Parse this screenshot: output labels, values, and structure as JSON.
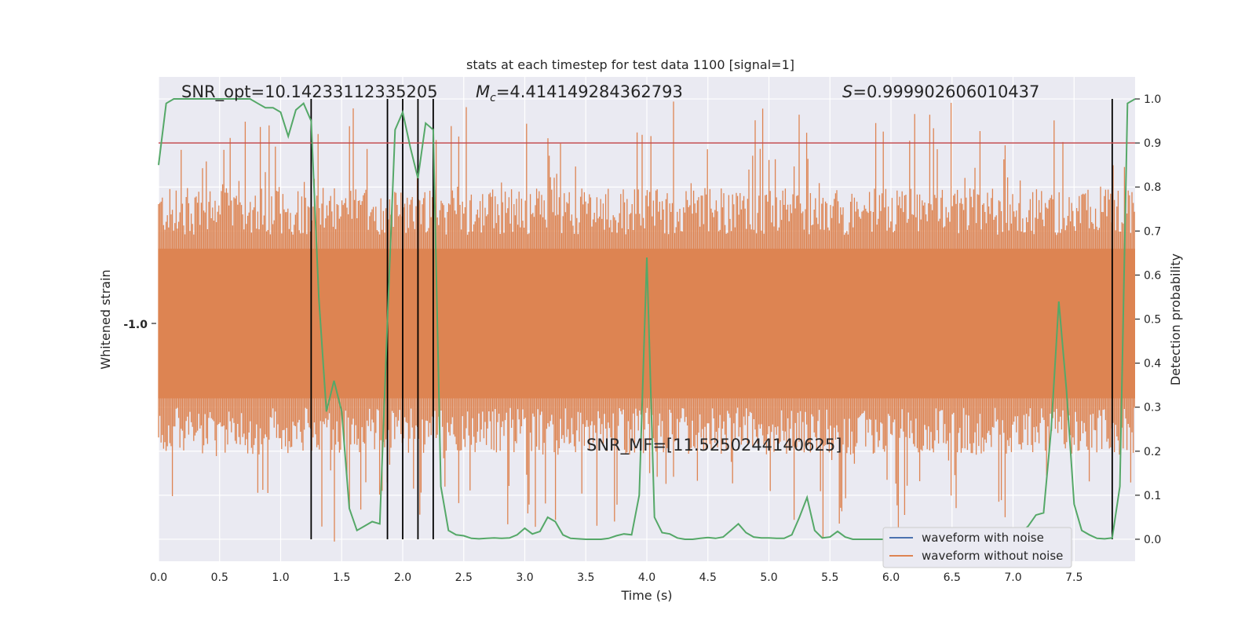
{
  "chart_data": {
    "type": "line",
    "title": "stats at each timestep for test data 1100 [signal=1]",
    "xlabel": "Time (s)",
    "ylabel_left": "Whitened strain",
    "ylabel_right": "Detection probability",
    "xlim": [
      0.0,
      8.0
    ],
    "ylim_right": [
      -0.05,
      1.05
    ],
    "x_ticks": [
      "0.0",
      "0.5",
      "1.0",
      "1.5",
      "2.0",
      "2.5",
      "3.0",
      "3.5",
      "4.0",
      "4.5",
      "5.0",
      "5.5",
      "6.0",
      "6.5",
      "7.0",
      "7.5"
    ],
    "y_ticks_right": [
      "0.0",
      "0.1",
      "0.2",
      "0.3",
      "0.4",
      "0.5",
      "0.6",
      "0.7",
      "0.8",
      "0.9",
      "1.0"
    ],
    "left_axis_tick_label": "-1.0",
    "annotations": {
      "snr_opt": "SNR_opt=10.14233112335205",
      "mc_symbol": "M",
      "mc_subscript": "c",
      "mc_value": "=4.414149284362793",
      "s_symbol": "S",
      "s_value": "=0.999902606010437",
      "snr_mf": "SNR_MF=[11.5250244140625]"
    },
    "threshold": 0.9,
    "vertical_lines": [
      1.25,
      1.875,
      2.0,
      2.125,
      2.25,
      7.8125
    ],
    "series": [
      {
        "name": "waveform with noise",
        "color": "#4c72b0"
      },
      {
        "name": "waveform without noise",
        "color": "#dd8452"
      },
      {
        "color": "#55a868",
        "x": [
          0.0,
          0.0625,
          0.125,
          0.1875,
          0.25,
          0.3125,
          0.375,
          0.4375,
          0.5,
          0.5625,
          0.625,
          0.6875,
          0.75,
          0.8125,
          0.875,
          0.9375,
          1.0,
          1.0625,
          1.125,
          1.1875,
          1.25,
          1.3125,
          1.375,
          1.4375,
          1.5,
          1.5625,
          1.625,
          1.6875,
          1.75,
          1.8125,
          1.875,
          1.9375,
          2.0,
          2.0625,
          2.125,
          2.1875,
          2.25,
          2.3125,
          2.375,
          2.4375,
          2.5,
          2.5625,
          2.625,
          2.6875,
          2.75,
          2.8125,
          2.875,
          2.9375,
          3.0,
          3.0625,
          3.125,
          3.1875,
          3.25,
          3.3125,
          3.375,
          3.4375,
          3.5,
          3.5625,
          3.625,
          3.6875,
          3.75,
          3.8125,
          3.875,
          3.9375,
          4.0,
          4.0625,
          4.125,
          4.1875,
          4.25,
          4.3125,
          4.375,
          4.4375,
          4.5,
          4.5625,
          4.625,
          4.6875,
          4.75,
          4.8125,
          4.875,
          4.9375,
          5.0,
          5.0625,
          5.125,
          5.1875,
          5.25,
          5.3125,
          5.375,
          5.4375,
          5.5,
          5.5625,
          5.625,
          5.6875,
          5.75,
          5.8125,
          5.875,
          5.9375,
          6.0,
          6.0625,
          6.125,
          6.1875,
          6.25,
          6.3125,
          6.375,
          6.4375,
          6.5,
          6.5625,
          6.625,
          6.6875,
          6.75,
          6.8125,
          6.875,
          6.9375,
          7.0,
          7.0625,
          7.125,
          7.1875,
          7.25,
          7.3125,
          7.375,
          7.4375,
          7.5,
          7.5625,
          7.625,
          7.6875,
          7.75,
          7.8125,
          7.875,
          7.9375,
          8.0
        ],
        "values": [
          0.85,
          0.99,
          1.0,
          1.0,
          1.0,
          1.0,
          1.0,
          1.0,
          1.0,
          1.0,
          1.0,
          1.0,
          1.0,
          0.99,
          0.98,
          0.98,
          0.97,
          0.915,
          0.975,
          0.99,
          0.95,
          0.55,
          0.29,
          0.36,
          0.29,
          0.07,
          0.02,
          0.03,
          0.04,
          0.035,
          0.5,
          0.93,
          0.97,
          0.89,
          0.82,
          0.945,
          0.93,
          0.12,
          0.02,
          0.01,
          0.008,
          0.002,
          0.001,
          0.002,
          0.003,
          0.002,
          0.003,
          0.01,
          0.025,
          0.012,
          0.018,
          0.05,
          0.04,
          0.01,
          0.002,
          0.001,
          0.0,
          0.0,
          0.0,
          0.002,
          0.008,
          0.012,
          0.01,
          0.1,
          0.64,
          0.05,
          0.015,
          0.012,
          0.003,
          0.0,
          0.0,
          0.002,
          0.004,
          0.002,
          0.005,
          0.02,
          0.035,
          0.015,
          0.005,
          0.003,
          0.003,
          0.002,
          0.002,
          0.01,
          0.05,
          0.095,
          0.02,
          0.003,
          0.005,
          0.018,
          0.005,
          0.0,
          0.0,
          0.0,
          0.0,
          0.0,
          0.0,
          0.0,
          0.0,
          0.0,
          0.0,
          0.0,
          0.0,
          0.0,
          0.0,
          0.0,
          0.0,
          0.0,
          0.0,
          0.0,
          0.0,
          0.005,
          0.012,
          0.015,
          0.03,
          0.055,
          0.06,
          0.25,
          0.54,
          0.34,
          0.08,
          0.02,
          0.01,
          0.002,
          0.001,
          0.003,
          0.12,
          0.99,
          1.0
        ]
      }
    ],
    "legend": "bottom-right",
    "grid": true
  },
  "colors": {
    "plot_background": "#eaeaf2",
    "grid": "#ffffff",
    "detection_line": "#55a868",
    "threshold_line": "#c44e52",
    "vertical_lines": "#000000"
  }
}
